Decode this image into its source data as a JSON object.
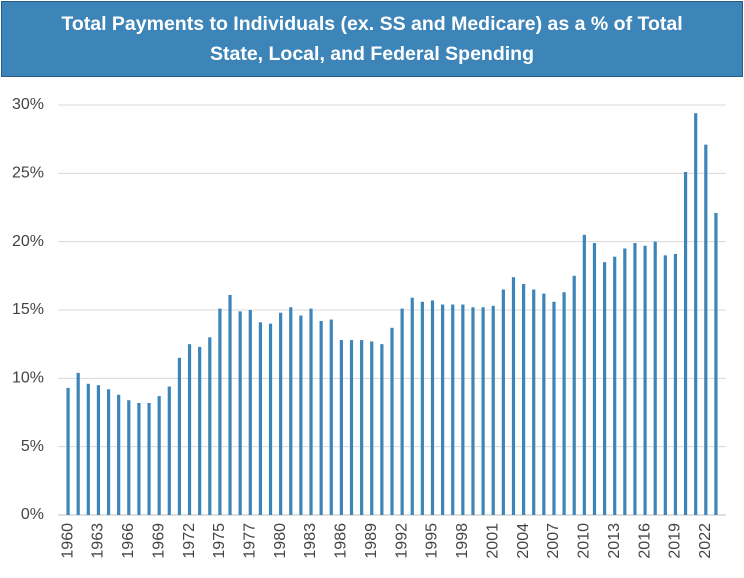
{
  "chart_data": {
    "type": "bar",
    "title": [
      "Total Payments to Individuals (ex. SS and Medicare) as a % of Total",
      "State, Local, and Federal Spending"
    ],
    "categories": [
      "1960",
      null,
      null,
      "1963",
      null,
      null,
      "1966",
      null,
      null,
      "1969",
      null,
      null,
      "1972",
      null,
      null,
      "1975",
      null,
      null,
      "1977",
      null,
      null,
      "1980",
      null,
      null,
      "1983",
      null,
      null,
      "1986",
      null,
      null,
      "1989",
      null,
      null,
      "1992",
      null,
      null,
      "1995",
      null,
      null,
      "1998",
      null,
      null,
      "2001",
      null,
      null,
      "2004",
      null,
      null,
      "2007",
      null,
      null,
      "2010",
      null,
      null,
      "2013",
      null,
      null,
      "2016",
      null,
      null,
      "2019",
      null,
      null,
      "2022",
      null
    ],
    "values": [
      9.3,
      10.4,
      9.6,
      9.5,
      9.2,
      8.8,
      8.4,
      8.2,
      8.2,
      8.7,
      9.4,
      11.5,
      12.5,
      12.3,
      13.0,
      15.1,
      16.1,
      14.9,
      15.0,
      14.1,
      14.0,
      14.8,
      15.2,
      14.6,
      15.1,
      14.2,
      14.3,
      12.8,
      12.8,
      12.8,
      12.7,
      12.5,
      13.7,
      15.1,
      15.9,
      15.6,
      15.7,
      15.4,
      15.4,
      15.4,
      15.2,
      15.2,
      15.3,
      16.5,
      17.4,
      16.9,
      16.5,
      16.2,
      15.6,
      16.3,
      17.5,
      20.5,
      19.9,
      18.5,
      18.9,
      19.5,
      19.9,
      19.7,
      20.0,
      19.0,
      19.1,
      25.1,
      29.4,
      27.1,
      22.1
    ],
    "color": "#3d85b8",
    "ylim": [
      0,
      30
    ],
    "yticks": [
      {
        "value": 0,
        "label": "0%"
      },
      {
        "value": 5,
        "label": "5%"
      },
      {
        "value": 10,
        "label": "10%"
      },
      {
        "value": 15,
        "label": "15%"
      },
      {
        "value": 20,
        "label": "20%"
      },
      {
        "value": 25,
        "label": "25%"
      },
      {
        "value": 30,
        "label": "30%"
      }
    ],
    "grid": true
  }
}
